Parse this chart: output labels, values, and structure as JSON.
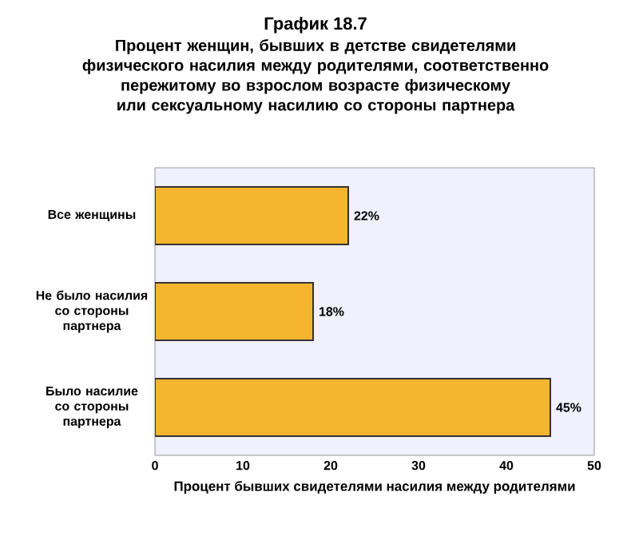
{
  "chart_data": {
    "type": "bar",
    "orientation": "horizontal",
    "title": "График 18.7",
    "subtitle": "Процент женщин, бывших в детстве свидетелями физического насилия между родителями, соответственно пережитому во взрослом возрасте физическому или сексуальному насилию со стороны партнера",
    "categories": [
      "Все женщины",
      "Не было насилия со стороны партнера",
      "Было насилие со стороны партнера"
    ],
    "values": [
      22,
      18,
      45
    ],
    "value_labels": [
      "22%",
      "18%",
      "45%"
    ],
    "color": "#f5b52e",
    "xlim": [
      0,
      50
    ],
    "xticks": [
      0,
      10,
      20,
      30,
      40,
      50
    ],
    "xlabel": "Процент бывших свидетелями насилия между родителями"
  }
}
